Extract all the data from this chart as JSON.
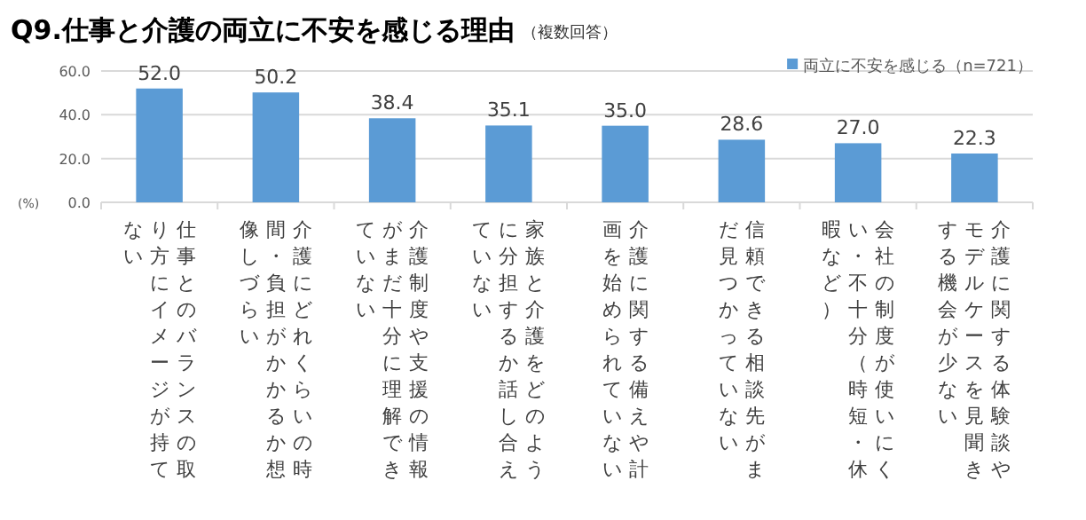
{
  "chart_data": {
    "type": "bar",
    "title": "Q9.仕事と介護の両立に不安を感じる理由",
    "subtitle": "（複数回答）",
    "ylabel": "(%)",
    "categories": [
      "仕事とのバランスの取り方にイメージが持てない",
      "介護にどれくらいの時間・負担がかかるか想像しづらい",
      "介護制度や支援の情報がまだ十分に理解できていない",
      "家族と介護をどのように分担するか話し合えていない",
      "介護に関する備えや計画を始められていない",
      "信頼できる相談先がまだ見つかっていない",
      "会社の制度が使いにくい・不十分（時短・休暇など）",
      "介護に関する体験談やモデルケースを見聞きする機会が少ない"
    ],
    "series": [
      {
        "name": "両立に不安を感じる（n=721）",
        "color": "#5b9bd5",
        "values": [
          52.0,
          50.2,
          38.4,
          35.1,
          35.0,
          28.6,
          27.0,
          22.3
        ]
      }
    ],
    "value_labels": [
      "52.0",
      "50.2",
      "38.4",
      "35.1",
      "35.0",
      "28.6",
      "27.0",
      "22.3"
    ],
    "ylim": [
      0,
      60
    ],
    "yticks": [
      {
        "value": 0,
        "label": "0.0"
      },
      {
        "value": 20,
        "label": "20.0"
      },
      {
        "value": 40,
        "label": "40.0"
      },
      {
        "value": 60,
        "label": "60.0"
      }
    ],
    "grid": "y",
    "legend": "top right"
  }
}
